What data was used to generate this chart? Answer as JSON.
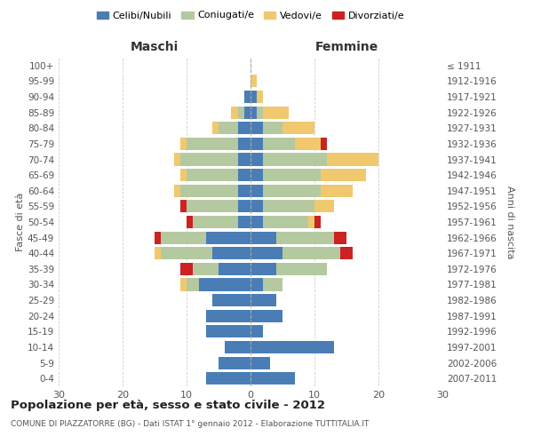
{
  "age_groups": [
    "0-4",
    "5-9",
    "10-14",
    "15-19",
    "20-24",
    "25-29",
    "30-34",
    "35-39",
    "40-44",
    "45-49",
    "50-54",
    "55-59",
    "60-64",
    "65-69",
    "70-74",
    "75-79",
    "80-84",
    "85-89",
    "90-94",
    "95-99",
    "100+"
  ],
  "birth_years": [
    "2007-2011",
    "2002-2006",
    "1997-2001",
    "1992-1996",
    "1987-1991",
    "1982-1986",
    "1977-1981",
    "1972-1976",
    "1967-1971",
    "1962-1966",
    "1957-1961",
    "1952-1956",
    "1947-1951",
    "1942-1946",
    "1937-1941",
    "1932-1936",
    "1927-1931",
    "1922-1926",
    "1917-1921",
    "1912-1916",
    "≤ 1911"
  ],
  "maschi": {
    "celibi": [
      7,
      5,
      4,
      7,
      7,
      6,
      8,
      5,
      6,
      7,
      2,
      2,
      2,
      2,
      2,
      2,
      2,
      1,
      1,
      0,
      0
    ],
    "coniugati": [
      0,
      0,
      0,
      0,
      0,
      0,
      2,
      4,
      8,
      7,
      7,
      8,
      9,
      8,
      9,
      8,
      3,
      1,
      0,
      0,
      0
    ],
    "vedovi": [
      0,
      0,
      0,
      0,
      0,
      0,
      1,
      0,
      1,
      0,
      0,
      0,
      1,
      1,
      1,
      1,
      1,
      1,
      0,
      0,
      0
    ],
    "divorziati": [
      0,
      0,
      0,
      0,
      0,
      0,
      0,
      2,
      0,
      1,
      1,
      1,
      0,
      0,
      0,
      0,
      0,
      0,
      0,
      0,
      0
    ]
  },
  "femmine": {
    "nubili": [
      7,
      3,
      13,
      2,
      5,
      4,
      2,
      4,
      5,
      4,
      2,
      2,
      2,
      2,
      2,
      2,
      2,
      1,
      1,
      0,
      0
    ],
    "coniugate": [
      0,
      0,
      0,
      0,
      0,
      0,
      3,
      8,
      9,
      9,
      7,
      8,
      9,
      9,
      10,
      5,
      3,
      1,
      0,
      0,
      0
    ],
    "vedove": [
      0,
      0,
      0,
      0,
      0,
      0,
      0,
      0,
      0,
      0,
      1,
      3,
      5,
      7,
      8,
      4,
      5,
      4,
      1,
      1,
      0
    ],
    "divorziate": [
      0,
      0,
      0,
      0,
      0,
      0,
      0,
      0,
      2,
      2,
      1,
      0,
      0,
      0,
      0,
      1,
      0,
      0,
      0,
      0,
      0
    ]
  },
  "colors": {
    "celibi": "#4a7db5",
    "coniugati": "#b5c9a0",
    "vedovi": "#f0c96e",
    "divorziati": "#cc2222"
  },
  "title1": "Popolazione per età, sesso e stato civile - 2012",
  "title2": "COMUNE DI PIAZZATORRE (BG) - Dati ISTAT 1° gennaio 2012 - Elaborazione TUTTITALIA.IT",
  "xlabel_left": "Maschi",
  "xlabel_right": "Femmine",
  "ylabel_left": "Fasce di età",
  "ylabel_right": "Anni di nascita",
  "xlim": 30,
  "bg_color": "#ffffff",
  "grid_color": "#cccccc",
  "legend_labels": [
    "Celibi/Nubili",
    "Coniugati/e",
    "Vedovi/e",
    "Divorziati/e"
  ]
}
